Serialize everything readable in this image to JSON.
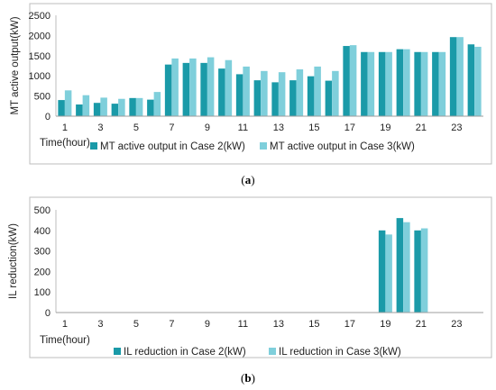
{
  "chart_data": [
    {
      "type": "bar",
      "caption": "a",
      "xlabel": "Time(hour)",
      "ylabel": "MT active output(kW)",
      "ylim": [
        0,
        2500
      ],
      "yticks": [
        0,
        500,
        1000,
        1500,
        2000,
        2500
      ],
      "xtick_labels": [
        "1",
        "3",
        "5",
        "7",
        "9",
        "11",
        "13",
        "15",
        "17",
        "19",
        "21",
        "23"
      ],
      "categories": [
        1,
        2,
        3,
        4,
        5,
        6,
        7,
        8,
        9,
        10,
        11,
        12,
        13,
        14,
        15,
        16,
        17,
        18,
        19,
        20,
        21,
        22,
        23,
        24
      ],
      "grid": false,
      "legend": "bottom",
      "series": [
        {
          "name": "MT active output in Case 2(kW)",
          "color": "#1a9aa8",
          "values": [
            400,
            290,
            330,
            310,
            450,
            410,
            1280,
            1320,
            1320,
            1180,
            1040,
            890,
            840,
            890,
            990,
            880,
            1740,
            1590,
            1590,
            1660,
            1590,
            1590,
            1960,
            1780
          ]
        },
        {
          "name": "MT active output in Case 3(kW)",
          "color": "#7fcfdb",
          "values": [
            640,
            520,
            460,
            430,
            450,
            600,
            1430,
            1430,
            1460,
            1390,
            1230,
            1120,
            1090,
            1160,
            1230,
            1120,
            1760,
            1590,
            1590,
            1660,
            1590,
            1590,
            1960,
            1720
          ]
        }
      ]
    },
    {
      "type": "bar",
      "caption": "b",
      "xlabel": "Time(hour)",
      "ylabel": "IL reduction(kW)",
      "ylim": [
        0,
        500
      ],
      "yticks": [
        0,
        100,
        200,
        300,
        400,
        500
      ],
      "xtick_labels": [
        "1",
        "3",
        "5",
        "7",
        "9",
        "11",
        "13",
        "15",
        "17",
        "19",
        "21",
        "23"
      ],
      "categories": [
        1,
        2,
        3,
        4,
        5,
        6,
        7,
        8,
        9,
        10,
        11,
        12,
        13,
        14,
        15,
        16,
        17,
        18,
        19,
        20,
        21,
        22,
        23,
        24
      ],
      "grid": false,
      "legend": "bottom",
      "series": [
        {
          "name": "IL reduction in Case 2(kW)",
          "color": "#1a9aa8",
          "values": [
            0,
            0,
            0,
            0,
            0,
            0,
            0,
            0,
            0,
            0,
            0,
            0,
            0,
            0,
            0,
            0,
            0,
            0,
            400,
            460,
            400,
            0,
            0,
            0
          ]
        },
        {
          "name": "IL reduction in Case 3(kW)",
          "color": "#7fcfdb",
          "values": [
            0,
            0,
            0,
            0,
            0,
            0,
            0,
            0,
            0,
            0,
            0,
            0,
            0,
            0,
            0,
            0,
            0,
            0,
            380,
            440,
            410,
            0,
            0,
            0
          ]
        }
      ]
    }
  ]
}
